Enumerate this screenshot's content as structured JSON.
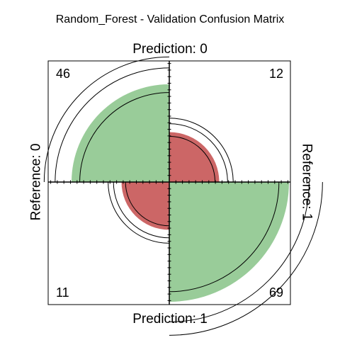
{
  "chart_data": {
    "type": "fourfold",
    "title": "Random_Forest - Validation Confusion Matrix",
    "column_labels": {
      "top": "Prediction: 0",
      "bottom": "Prediction: 1"
    },
    "row_labels": {
      "left": "Reference: 0",
      "right": "Reference: 1"
    },
    "cells": [
      {
        "name": "pred0-ref0",
        "value": 46,
        "quadrant": "top-left",
        "class": "correct"
      },
      {
        "name": "pred0-ref1",
        "value": 12,
        "quadrant": "top-right",
        "class": "error"
      },
      {
        "name": "pred1-ref0",
        "value": 11,
        "quadrant": "bottom-left",
        "class": "error"
      },
      {
        "name": "pred1-ref1",
        "value": 69,
        "quadrant": "bottom-right",
        "class": "correct"
      }
    ],
    "colors": {
      "correct": "#99cc99",
      "error": "#cc6666",
      "outline": "#000000"
    },
    "confidence_rings": true
  }
}
